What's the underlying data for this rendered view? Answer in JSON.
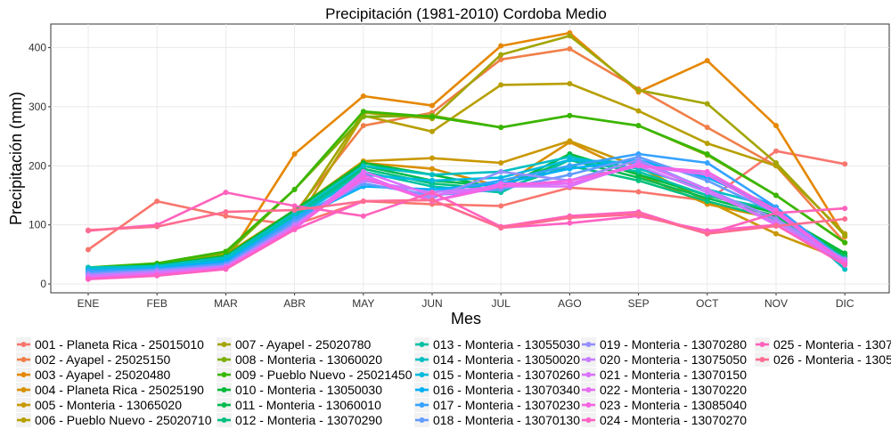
{
  "chart_data": {
    "type": "line",
    "title": "Precipitación (1981-2010)  Cordoba Medio",
    "xlabel": "Mes",
    "ylabel": "Precipitación (mm)",
    "categories": [
      "ENE",
      "FEB",
      "MAR",
      "ABR",
      "MAY",
      "JUN",
      "JUL",
      "AGO",
      "SEP",
      "OCT",
      "NOV",
      "DIC"
    ],
    "y_ticks": [
      0,
      100,
      200,
      300,
      400
    ],
    "ylim": [
      -15,
      440
    ],
    "grid": true,
    "legend_position": "bottom",
    "series": [
      {
        "name": "001 - Planeta Rica - 25015010",
        "color": "#F8766D",
        "values": [
          58,
          140,
          115,
          100,
          140,
          135,
          132,
          163,
          156,
          141,
          225,
          203
        ]
      },
      {
        "name": "002 - Ayapel - 25025150",
        "color": "#EF7F49",
        "values": [
          14,
          22,
          40,
          120,
          268,
          290,
          380,
          398,
          330,
          265,
          200,
          70
        ]
      },
      {
        "name": "003 - Ayapel - 25020480",
        "color": "#E58700",
        "values": [
          12,
          20,
          38,
          220,
          318,
          302,
          403,
          425,
          325,
          378,
          268,
          80
        ]
      },
      {
        "name": "004 - Planeta Rica - 25025190",
        "color": "#D89000",
        "values": [
          15,
          25,
          45,
          110,
          205,
          195,
          165,
          240,
          185,
          135,
          110,
          45
        ]
      },
      {
        "name": "005 - Monteria - 13065020",
        "color": "#C99800",
        "values": [
          18,
          28,
          50,
          125,
          208,
          213,
          205,
          242,
          198,
          140,
          85,
          40
        ]
      },
      {
        "name": "006 - Pueblo Nuevo - 25020710",
        "color": "#B79F00",
        "values": [
          20,
          30,
          52,
          100,
          285,
          258,
          337,
          339,
          293,
          238,
          200,
          85
        ]
      },
      {
        "name": "007 - Ayapel - 25020780",
        "color": "#A3A500",
        "values": [
          22,
          32,
          48,
          115,
          290,
          280,
          388,
          420,
          328,
          305,
          205,
          82
        ]
      },
      {
        "name": "008 - Monteria - 13060020",
        "color": "#7CAE00",
        "values": [
          25,
          33,
          50,
          160,
          283,
          285,
          265,
          285,
          268,
          218,
          150,
          70
        ]
      },
      {
        "name": "009 - Pueblo Nuevo - 25021450",
        "color": "#39B600",
        "values": [
          28,
          35,
          55,
          160,
          292,
          283,
          265,
          285,
          268,
          220,
          150,
          70
        ]
      },
      {
        "name": "010 - Monteria - 13050030",
        "color": "#00BA38",
        "values": [
          26,
          32,
          47,
          125,
          205,
          185,
          162,
          220,
          185,
          150,
          120,
          52
        ]
      },
      {
        "name": "011 - Monteria - 13060010",
        "color": "#00BB4E",
        "values": [
          24,
          30,
          45,
          120,
          200,
          175,
          165,
          210,
          180,
          145,
          115,
          48
        ]
      },
      {
        "name": "012 - Monteria - 13070290",
        "color": "#00BF7D",
        "values": [
          22,
          30,
          44,
          118,
          195,
          170,
          160,
          200,
          175,
          140,
          110,
          45
        ]
      },
      {
        "name": "013 - Monteria - 13055030",
        "color": "#00C1A3",
        "values": [
          25,
          28,
          42,
          115,
          190,
          165,
          155,
          210,
          190,
          150,
          125,
          42
        ]
      },
      {
        "name": "014 - Monteria - 13050020",
        "color": "#00BFC4",
        "values": [
          28,
          30,
          45,
          120,
          200,
          185,
          190,
          215,
          195,
          160,
          130,
          25
        ]
      },
      {
        "name": "015 - Monteria - 13070260",
        "color": "#00BAE0",
        "values": [
          24,
          28,
          40,
          112,
          185,
          175,
          180,
          210,
          205,
          185,
          125,
          32
        ]
      },
      {
        "name": "016 - Monteria - 13070340",
        "color": "#00B0F6",
        "values": [
          20,
          26,
          38,
          108,
          165,
          160,
          170,
          195,
          210,
          180,
          130,
          35
        ]
      },
      {
        "name": "017 - Monteria - 13070230",
        "color": "#35A2FF",
        "values": [
          22,
          25,
          35,
          110,
          175,
          155,
          175,
          200,
          220,
          205,
          130,
          38
        ]
      },
      {
        "name": "018 - Monteria - 13070130",
        "color": "#619CFF",
        "values": [
          18,
          24,
          33,
          105,
          170,
          150,
          160,
          185,
          215,
          175,
          120,
          40
        ]
      },
      {
        "name": "019 - Monteria - 13070280",
        "color": "#9590FF",
        "values": [
          16,
          22,
          30,
          100,
          180,
          145,
          190,
          175,
          210,
          160,
          110,
          42
        ]
      },
      {
        "name": "020 - Monteria - 13075050",
        "color": "#C77CFF",
        "values": [
          14,
          20,
          30,
          100,
          175,
          155,
          165,
          170,
          200,
          155,
          105,
          40
        ]
      },
      {
        "name": "021 - Monteria - 13070150",
        "color": "#DB72FB",
        "values": [
          12,
          18,
          28,
          95,
          190,
          150,
          165,
          165,
          205,
          160,
          100,
          38
        ]
      },
      {
        "name": "022 - Monteria - 13070220",
        "color": "#E76BF3",
        "values": [
          10,
          16,
          27,
          93,
          185,
          140,
          170,
          170,
          200,
          185,
          120,
          36
        ]
      },
      {
        "name": "023 - Monteria - 13085040",
        "color": "#F564E3",
        "values": [
          9,
          15,
          26,
          95,
          180,
          140,
          165,
          175,
          200,
          190,
          125,
          35
        ]
      },
      {
        "name": "024 - Monteria - 13070270",
        "color": "#FF61C3",
        "values": [
          8,
          14,
          25,
          92,
          140,
          142,
          95,
          103,
          115,
          90,
          100,
          32
        ]
      },
      {
        "name": "025 - Monteria - 1307",
        "color": "#FF62BC",
        "values": [
          90,
          100,
          155,
          132,
          115,
          155,
          97,
          115,
          122,
          85,
          120,
          128
        ]
      },
      {
        "name": "026 - Monteria - 1305",
        "color": "#FF6C91",
        "values": [
          91,
          97,
          122,
          125,
          140,
          142,
          95,
          112,
          118,
          85,
          98,
          110
        ]
      }
    ]
  }
}
